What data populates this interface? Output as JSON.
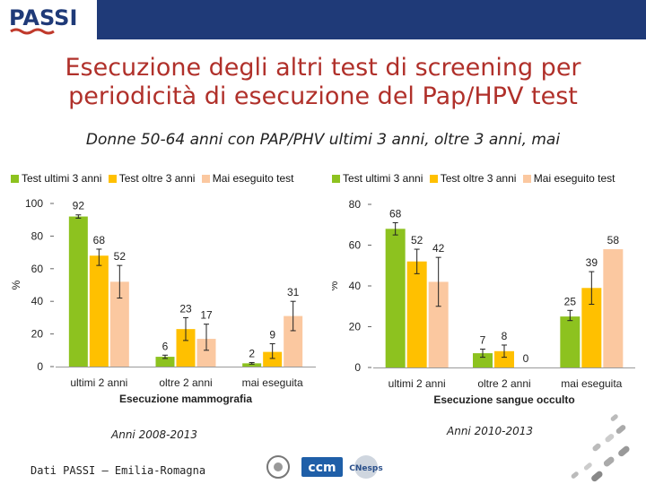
{
  "header": {
    "logo_text": "PASSI"
  },
  "title_line1": "Esecuzione degli altri test di screening per",
  "title_line2": "periodicità di esecuzione del Pap/HPV test",
  "subtitle": "Donne 50-64 anni con PAP/PHV ultimi 3 anni, oltre 3 anni, mai",
  "colors": {
    "green": "#8dc21f",
    "yellow": "#ffc000",
    "peach": "#fbc8a0",
    "topbar": "#1f3a78",
    "title": "#b0302a"
  },
  "chart_data": [
    {
      "type": "bar",
      "title": "",
      "xlabel": "Esecuzione mammografia",
      "ylabel": "%",
      "ylim": [
        0,
        100
      ],
      "yticks": [
        "0",
        "20",
        "40",
        "60",
        "80",
        "100"
      ],
      "categories": [
        "ultimi 2 anni",
        "oltre 2 anni",
        "mai eseguita"
      ],
      "series": [
        {
          "name": "Test ultimi 3 anni",
          "color": "#8dc21f",
          "values": [
            92,
            6,
            2
          ],
          "labels": [
            "92",
            "6",
            "2"
          ],
          "err_low": [
            91,
            5,
            1.5
          ],
          "err_high": [
            93,
            7,
            2.5
          ]
        },
        {
          "name": "Test oltre 3 anni",
          "color": "#ffc000",
          "values": [
            68,
            23,
            9
          ],
          "labels": [
            "68",
            "23",
            "9"
          ],
          "err_low": [
            62,
            16,
            5
          ],
          "err_high": [
            72,
            30,
            14
          ]
        },
        {
          "name": "Mai eseguito test",
          "color": "#fbc8a0",
          "values": [
            52,
            17,
            31
          ],
          "labels": [
            "52",
            "17",
            "31"
          ],
          "err_low": [
            42,
            10,
            22
          ],
          "err_high": [
            62,
            26,
            40
          ]
        }
      ],
      "caption": "Anni 2008-2013"
    },
    {
      "type": "bar",
      "title": "",
      "xlabel": "Esecuzione sangue occulto",
      "ylabel": "%",
      "ylim": [
        0,
        80
      ],
      "yticks": [
        "0",
        "20",
        "40",
        "60",
        "80"
      ],
      "categories": [
        "ultimi 2 anni",
        "oltre 2 anni",
        "mai eseguita"
      ],
      "series": [
        {
          "name": "Test ultimi 3 anni",
          "color": "#8dc21f",
          "values": [
            68,
            7,
            25
          ],
          "labels": [
            "68",
            "7",
            "25"
          ],
          "err_low": [
            65,
            5,
            23
          ],
          "err_high": [
            71,
            9,
            28
          ]
        },
        {
          "name": "Test oltre 3 anni",
          "color": "#ffc000",
          "values": [
            52,
            8,
            39
          ],
          "labels": [
            "52",
            "8",
            "39"
          ],
          "err_low": [
            46,
            5,
            31
          ],
          "err_high": [
            58,
            11,
            47
          ]
        },
        {
          "name": "Mai eseguito test",
          "color": "#fbc8a0",
          "values": [
            42,
            0,
            58
          ],
          "labels": [
            "42",
            "0",
            "58"
          ],
          "err_low": [
            30,
            0,
            58
          ],
          "err_high": [
            54,
            0,
            58
          ]
        }
      ],
      "caption": "Anni 2010-2013"
    }
  ],
  "footer": "Dati PASSI – Emilia-Romagna",
  "partner_logos": {
    "ccm": "ccm",
    "cnesps": "CNesps"
  }
}
